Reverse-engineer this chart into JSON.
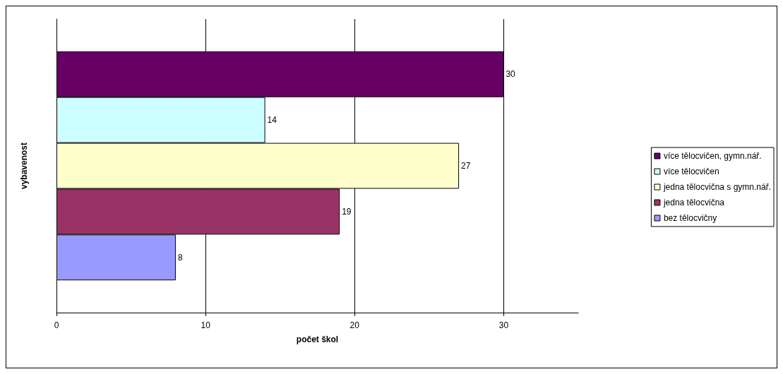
{
  "chart_data": {
    "type": "bar",
    "orientation": "horizontal",
    "xlabel": "počet škol",
    "ylabel": "vybavenost",
    "categories": [
      null
    ],
    "series": [
      {
        "name": "více tělocvičen, gymn.nář.",
        "color": "#660066",
        "values": [
          30
        ]
      },
      {
        "name": "více tělocvičen",
        "color": "#ccffff",
        "values": [
          14
        ]
      },
      {
        "name": "jedna tělocvična s gymn.nář.",
        "color": "#ffffcc",
        "values": [
          27
        ]
      },
      {
        "name": "jedna tělocvična",
        "color": "#993366",
        "values": [
          19
        ]
      },
      {
        "name": "bez tělocvičny",
        "color": "#9999ff",
        "values": [
          8
        ]
      }
    ],
    "xlim": [
      0,
      35
    ],
    "xticks": [
      0,
      10,
      20,
      30
    ],
    "grid": "x",
    "legend": "right",
    "data_labels": true
  }
}
